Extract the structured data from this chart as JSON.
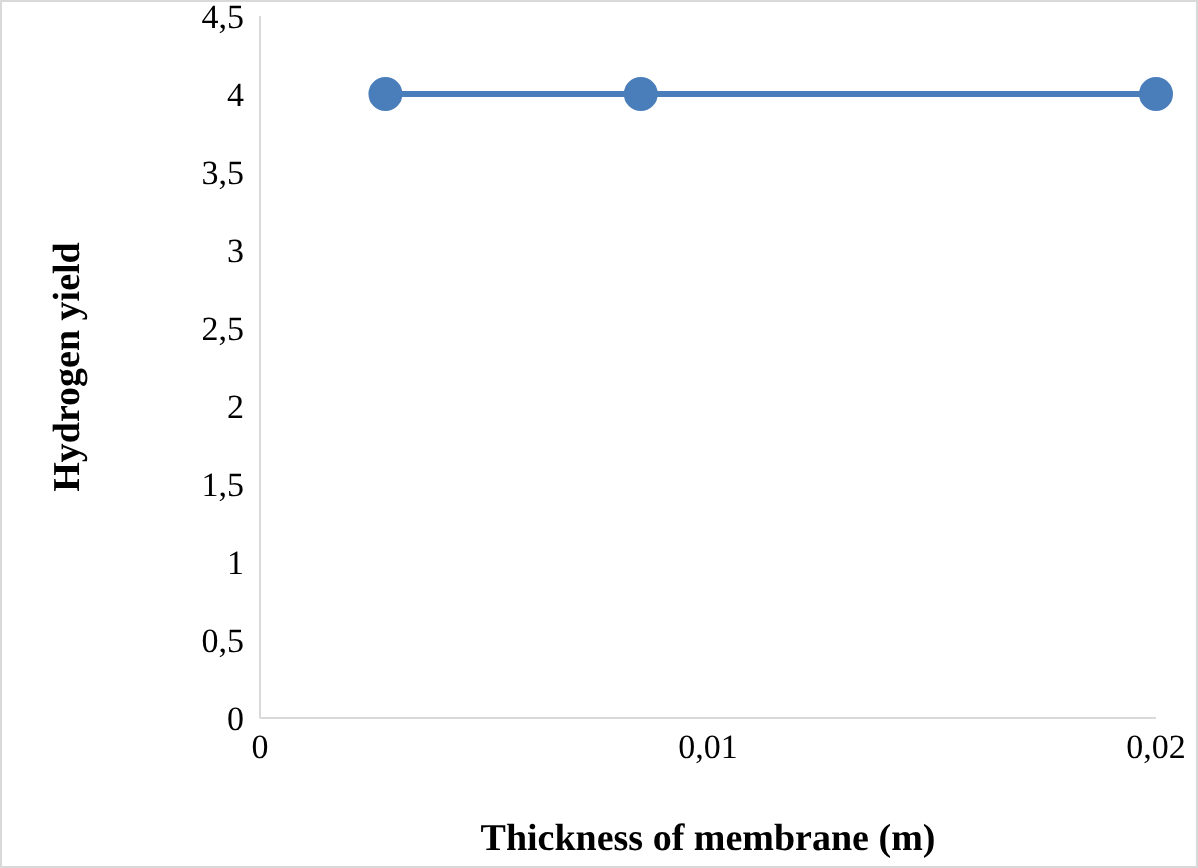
{
  "chart_data": {
    "type": "line",
    "xlabel": "Thickness of membrane (m)",
    "ylabel": "Hydrogen yield",
    "x": [
      0.0028,
      0.0085,
      0.02
    ],
    "series": [
      {
        "color": "#4a7ebb",
        "values": [
          4,
          4,
          4
        ]
      }
    ],
    "xlim": [
      0,
      0.02
    ],
    "xticks": [
      0,
      {
        "value": 0.01,
        "label": "0,01"
      },
      {
        "value": 0.02,
        "label": "0,02"
      }
    ],
    "ylim": [
      0,
      4.5
    ],
    "yticks": [
      0,
      {
        "value": 0.5,
        "label": "0,5"
      },
      1,
      {
        "value": 1.5,
        "label": "1,5"
      },
      2,
      {
        "value": 2.5,
        "label": "2,5"
      },
      3,
      {
        "value": 3.5,
        "label": "3,5"
      },
      4,
      {
        "value": 4.5,
        "label": "4,5"
      }
    ],
    "grid": false,
    "legend": false,
    "marker": "circle",
    "line_style": "solid"
  }
}
